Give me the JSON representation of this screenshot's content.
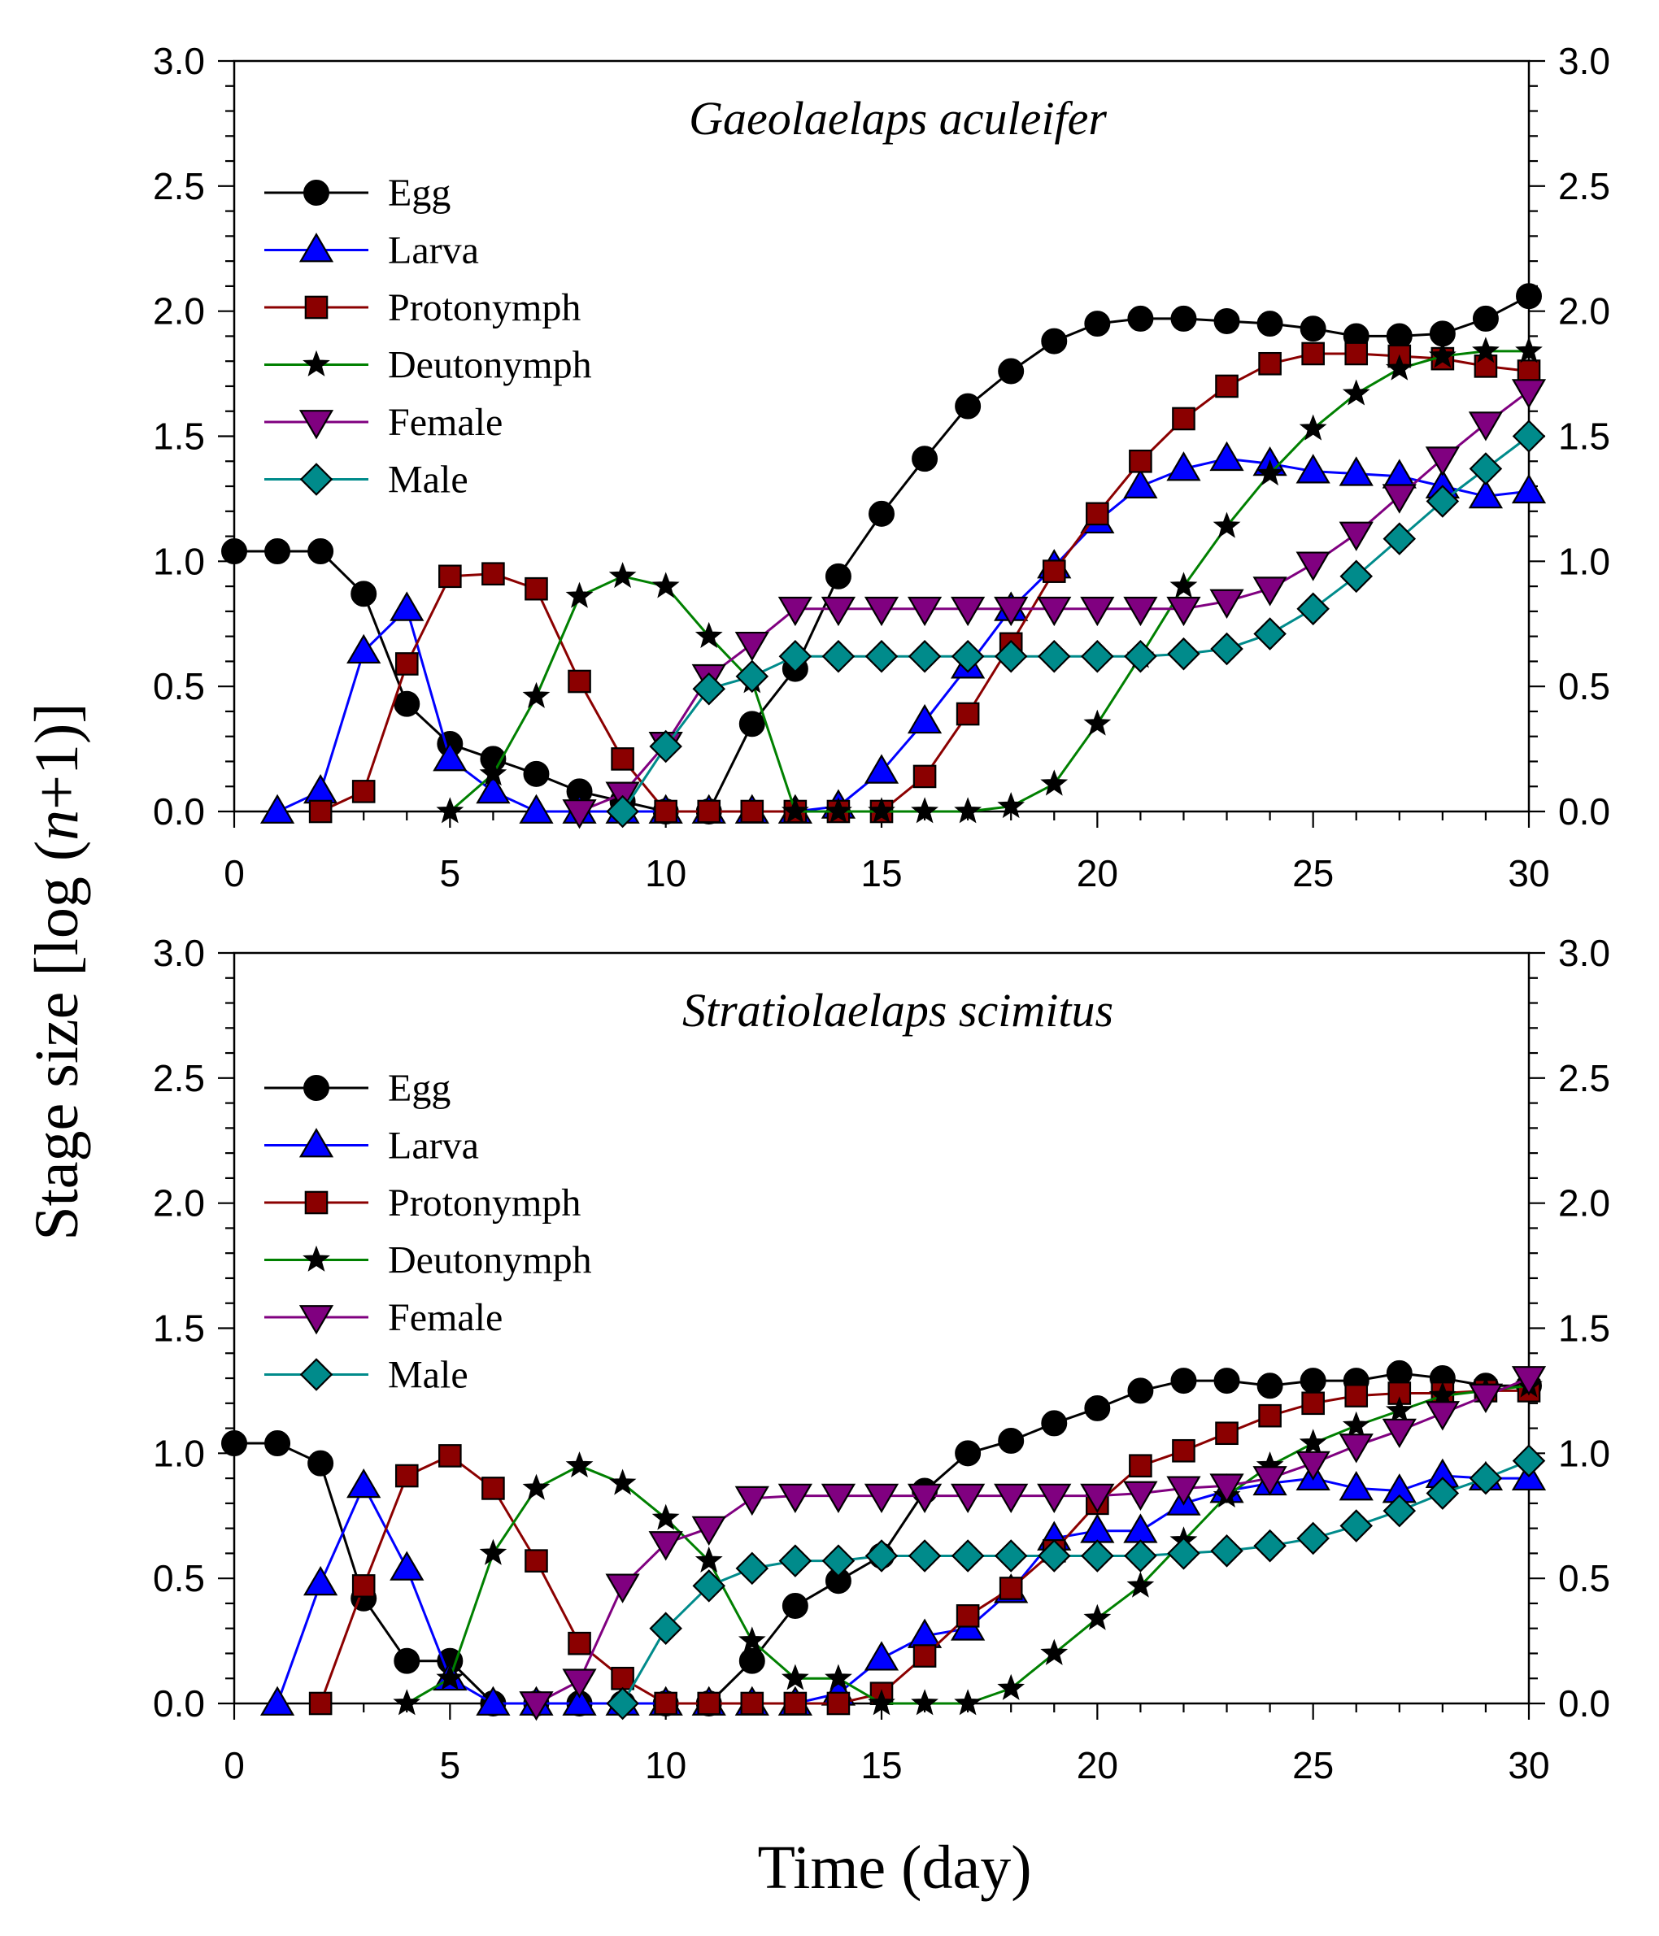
{
  "figure": {
    "ylabel_prefix": "Stage size [log (",
    "ylabel_n": "n",
    "ylabel_suffix": "+1)]",
    "xlabel": "Time (day)"
  },
  "chart_data": [
    {
      "type": "line",
      "title": "Gaeolaelaps aculeifer",
      "xlabel": "Time (day)",
      "ylabel": "Stage size [log (n+1)]",
      "xlim": [
        0,
        30
      ],
      "ylim": [
        0,
        3.0
      ],
      "xticks": [
        "0",
        "5",
        "10",
        "15",
        "20",
        "25",
        "30"
      ],
      "yticks": [
        "0.0",
        "0.5",
        "1.0",
        "1.5",
        "2.0",
        "2.5",
        "3.0"
      ],
      "legend_position": "top-left",
      "series": [
        {
          "name": "Egg",
          "color": "#000000",
          "marker": "circle",
          "x": [
            0,
            1,
            2,
            3,
            4,
            5,
            6,
            7,
            8,
            9,
            10,
            11,
            12,
            13,
            14,
            15,
            16,
            17,
            18,
            19,
            20,
            21,
            22,
            23,
            24,
            25,
            26,
            27,
            28,
            29,
            30
          ],
          "values": [
            1.04,
            1.04,
            1.04,
            0.87,
            0.43,
            0.27,
            0.21,
            0.15,
            0.08,
            0.04,
            0,
            0,
            0.35,
            0.57,
            0.94,
            1.19,
            1.41,
            1.62,
            1.76,
            1.88,
            1.95,
            1.97,
            1.97,
            1.96,
            1.95,
            1.93,
            1.9,
            1.9,
            1.91,
            1.97,
            2.06
          ]
        },
        {
          "name": "Larva",
          "color": "#0000ff",
          "marker": "triangle-up",
          "x": [
            1,
            2,
            3,
            4,
            5,
            6,
            7,
            8,
            9,
            10,
            11,
            12,
            13,
            14,
            15,
            16,
            17,
            18,
            19,
            20,
            21,
            22,
            23,
            24,
            25,
            26,
            27,
            28,
            29,
            30
          ],
          "values": [
            0,
            0.08,
            0.64,
            0.81,
            0.21,
            0.08,
            0,
            0,
            0,
            0,
            0,
            0,
            0,
            0.02,
            0.16,
            0.36,
            0.58,
            0.81,
            0.98,
            1.16,
            1.3,
            1.37,
            1.41,
            1.39,
            1.36,
            1.35,
            1.34,
            1.3,
            1.26,
            1.28
          ]
        },
        {
          "name": "Protonymph",
          "color": "#8b0000",
          "marker": "square",
          "x": [
            2,
            3,
            4,
            5,
            6,
            7,
            8,
            9,
            10,
            11,
            12,
            13,
            14,
            15,
            16,
            17,
            18,
            19,
            20,
            21,
            22,
            23,
            24,
            25,
            26,
            27,
            28,
            29,
            30
          ],
          "values": [
            0,
            0.08,
            0.59,
            0.94,
            0.95,
            0.89,
            0.52,
            0.21,
            0,
            0,
            0,
            0,
            0,
            0,
            0.14,
            0.39,
            0.67,
            0.96,
            1.19,
            1.4,
            1.57,
            1.7,
            1.79,
            1.83,
            1.83,
            1.82,
            1.81,
            1.78,
            1.76
          ]
        },
        {
          "name": "Deutonymph",
          "color": "#008000",
          "marker": "star",
          "x": [
            5,
            6,
            7,
            8,
            9,
            10,
            11,
            12,
            13,
            14,
            15,
            16,
            17,
            18,
            19,
            20,
            21,
            22,
            23,
            24,
            25,
            26,
            27,
            28,
            29,
            30
          ],
          "values": [
            0,
            0.15,
            0.46,
            0.86,
            0.94,
            0.9,
            0.7,
            0.52,
            0,
            0,
            0,
            0,
            0,
            0.02,
            0.11,
            0.35,
            0.62,
            0.9,
            1.14,
            1.35,
            1.53,
            1.67,
            1.77,
            1.82,
            1.84,
            1.84
          ]
        },
        {
          "name": "Female",
          "color": "#800080",
          "marker": "triangle-down",
          "x": [
            8,
            9,
            10,
            11,
            12,
            13,
            14,
            15,
            16,
            17,
            18,
            19,
            20,
            21,
            22,
            23,
            24,
            25,
            26,
            27,
            28,
            29,
            30
          ],
          "values": [
            0,
            0.07,
            0.27,
            0.54,
            0.67,
            0.81,
            0.81,
            0.81,
            0.81,
            0.81,
            0.81,
            0.81,
            0.81,
            0.81,
            0.81,
            0.84,
            0.89,
            0.99,
            1.11,
            1.26,
            1.41,
            1.55,
            1.68
          ]
        },
        {
          "name": "Male",
          "color": "#008b8b",
          "marker": "diamond",
          "x": [
            9,
            10,
            11,
            12,
            13,
            14,
            15,
            16,
            17,
            18,
            19,
            20,
            21,
            22,
            23,
            24,
            25,
            26,
            27,
            28,
            29,
            30
          ],
          "values": [
            0,
            0.26,
            0.49,
            0.54,
            0.62,
            0.62,
            0.62,
            0.62,
            0.62,
            0.62,
            0.62,
            0.62,
            0.62,
            0.63,
            0.65,
            0.71,
            0.81,
            0.94,
            1.09,
            1.24,
            1.37,
            1.5
          ]
        }
      ]
    },
    {
      "type": "line",
      "title": "Stratiolaelaps scimitus",
      "xlabel": "Time (day)",
      "ylabel": "Stage size [log (n+1)]",
      "xlim": [
        0,
        30
      ],
      "ylim": [
        0,
        3.0
      ],
      "xticks": [
        "0",
        "5",
        "10",
        "15",
        "20",
        "25",
        "30"
      ],
      "yticks": [
        "0.0",
        "0.5",
        "1.0",
        "1.5",
        "2.0",
        "2.5",
        "3.0"
      ],
      "legend_position": "top-left",
      "series": [
        {
          "name": "Egg",
          "color": "#000000",
          "marker": "circle",
          "x": [
            0,
            1,
            2,
            3,
            4,
            5,
            6,
            7,
            8,
            9,
            10,
            11,
            12,
            13,
            14,
            15,
            16,
            17,
            18,
            19,
            20,
            21,
            22,
            23,
            24,
            25,
            26,
            27,
            28,
            29,
            30
          ],
          "values": [
            1.04,
            1.04,
            0.96,
            0.42,
            0.17,
            0.17,
            0,
            0,
            0,
            0,
            0,
            0,
            0.17,
            0.39,
            0.49,
            0.59,
            0.85,
            1.0,
            1.05,
            1.12,
            1.18,
            1.25,
            1.29,
            1.29,
            1.27,
            1.29,
            1.29,
            1.32,
            1.3,
            1.27,
            1.27
          ]
        },
        {
          "name": "Larva",
          "color": "#0000ff",
          "marker": "triangle-up",
          "x": [
            1,
            2,
            3,
            4,
            5,
            6,
            7,
            8,
            9,
            10,
            11,
            12,
            13,
            14,
            15,
            16,
            17,
            18,
            19,
            20,
            21,
            22,
            23,
            24,
            25,
            26,
            27,
            28,
            29,
            30
          ],
          "values": [
            0,
            0.48,
            0.87,
            0.54,
            0.1,
            0,
            0,
            0,
            0,
            0,
            0,
            0,
            0,
            0.04,
            0.18,
            0.27,
            0.3,
            0.45,
            0.66,
            0.69,
            0.69,
            0.8,
            0.85,
            0.88,
            0.9,
            0.86,
            0.85,
            0.91,
            0.9,
            0.9
          ]
        },
        {
          "name": "Protonymph",
          "color": "#8b0000",
          "marker": "square",
          "x": [
            2,
            3,
            4,
            5,
            6,
            7,
            8,
            9,
            10,
            11,
            12,
            13,
            14,
            15,
            16,
            17,
            18,
            19,
            20,
            21,
            22,
            23,
            24,
            25,
            26,
            27,
            28,
            29,
            30
          ],
          "values": [
            0,
            0.47,
            0.91,
            0.99,
            0.86,
            0.57,
            0.24,
            0.1,
            0,
            0,
            0,
            0,
            0,
            0.04,
            0.19,
            0.35,
            0.46,
            0.61,
            0.8,
            0.95,
            1.01,
            1.08,
            1.15,
            1.2,
            1.23,
            1.24,
            1.24,
            1.25,
            1.25
          ]
        },
        {
          "name": "Deutonymph",
          "color": "#008000",
          "marker": "star",
          "x": [
            4,
            5,
            6,
            7,
            8,
            9,
            10,
            11,
            12,
            13,
            14,
            15,
            16,
            17,
            18,
            19,
            20,
            21,
            22,
            23,
            24,
            25,
            26,
            27,
            28,
            29,
            30
          ],
          "values": [
            0,
            0.1,
            0.6,
            0.86,
            0.95,
            0.88,
            0.74,
            0.57,
            0.25,
            0.1,
            0.1,
            0,
            0,
            0,
            0.06,
            0.2,
            0.34,
            0.47,
            0.65,
            0.83,
            0.95,
            1.04,
            1.11,
            1.17,
            1.23,
            1.25,
            1.27
          ]
        },
        {
          "name": "Female",
          "color": "#800080",
          "marker": "triangle-down",
          "x": [
            7,
            8,
            9,
            10,
            11,
            12,
            13,
            14,
            15,
            16,
            17,
            18,
            19,
            20,
            21,
            22,
            23,
            24,
            25,
            26,
            27,
            28,
            29,
            30
          ],
          "values": [
            0,
            0.09,
            0.47,
            0.64,
            0.7,
            0.82,
            0.83,
            0.83,
            0.83,
            0.83,
            0.83,
            0.83,
            0.83,
            0.83,
            0.84,
            0.86,
            0.87,
            0.9,
            0.96,
            1.03,
            1.09,
            1.16,
            1.23,
            1.3
          ]
        },
        {
          "name": "Male",
          "color": "#008b8b",
          "marker": "diamond",
          "x": [
            9,
            10,
            11,
            12,
            13,
            14,
            15,
            16,
            17,
            18,
            19,
            20,
            21,
            22,
            23,
            24,
            25,
            26,
            27,
            28,
            29,
            30
          ],
          "values": [
            0,
            0.3,
            0.47,
            0.54,
            0.57,
            0.57,
            0.59,
            0.59,
            0.59,
            0.59,
            0.59,
            0.59,
            0.59,
            0.6,
            0.61,
            0.63,
            0.66,
            0.71,
            0.77,
            0.84,
            0.9,
            0.97
          ]
        }
      ]
    }
  ]
}
